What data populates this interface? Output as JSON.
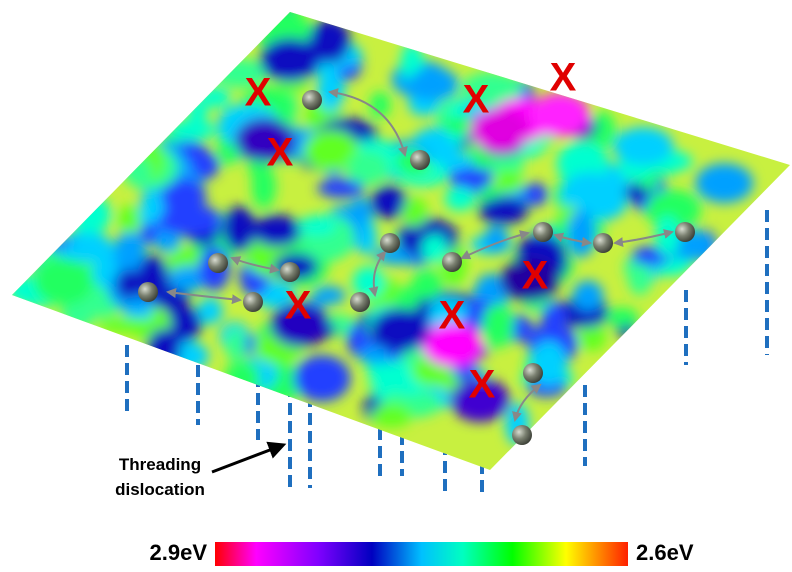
{
  "defect_markers": [
    "X",
    "X",
    "X",
    "X",
    "X",
    "X",
    "X",
    "X"
  ],
  "annotation": [
    "Threading",
    "dislocation"
  ],
  "colorbar": {
    "left_label": "2.9eV",
    "right_label": "2.6eV"
  }
}
